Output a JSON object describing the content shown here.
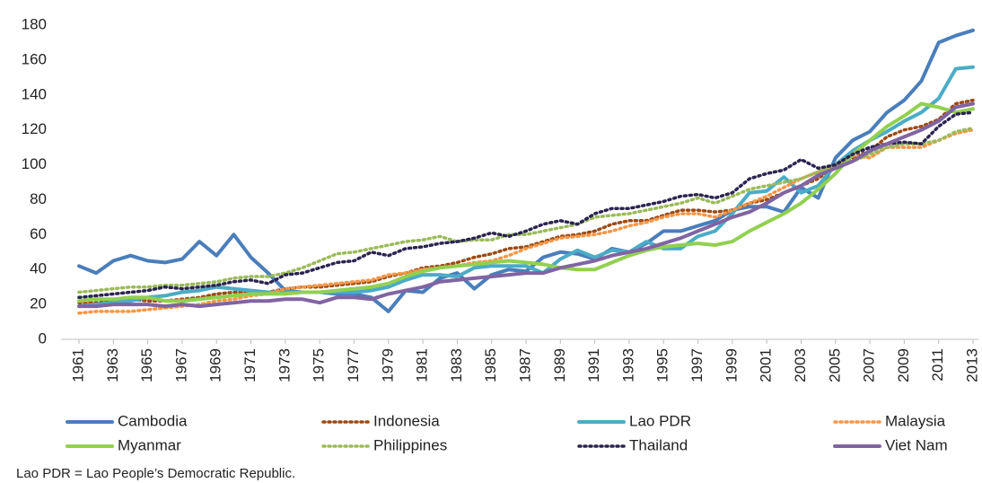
{
  "chart_data": {
    "type": "line",
    "x": [
      1961,
      1962,
      1963,
      1964,
      1965,
      1966,
      1967,
      1968,
      1969,
      1970,
      1971,
      1972,
      1973,
      1974,
      1975,
      1976,
      1977,
      1978,
      1979,
      1980,
      1981,
      1982,
      1983,
      1984,
      1985,
      1986,
      1987,
      1988,
      1989,
      1990,
      1991,
      1992,
      1993,
      1994,
      1995,
      1996,
      1997,
      1998,
      1999,
      2000,
      2001,
      2002,
      2003,
      2004,
      2005,
      2006,
      2007,
      2008,
      2009,
      2010,
      2011,
      2012,
      2013
    ],
    "xlim": [
      1961,
      2013
    ],
    "xticks": [
      1961,
      1963,
      1965,
      1967,
      1969,
      1971,
      1973,
      1975,
      1977,
      1979,
      1981,
      1983,
      1985,
      1987,
      1989,
      1991,
      1993,
      1995,
      1997,
      1999,
      2001,
      2003,
      2005,
      2007,
      2009,
      2011,
      2013
    ],
    "ylim": [
      0,
      180
    ],
    "yticks": [
      0,
      20,
      40,
      60,
      80,
      100,
      120,
      140,
      160,
      180
    ],
    "grid": false,
    "legend": "bottom",
    "series": [
      {
        "name": "Cambodia",
        "color": "#4a7ebb",
        "style": "solid",
        "values": [
          42,
          38,
          45,
          48,
          45,
          44,
          46,
          56,
          48,
          60,
          47,
          38,
          28,
          27,
          27,
          26,
          26,
          24,
          16,
          28,
          27,
          35,
          38,
          29,
          37,
          40,
          39,
          47,
          50,
          49,
          46,
          52,
          50,
          55,
          62,
          62,
          65,
          68,
          74,
          76,
          76,
          73,
          87,
          81,
          104,
          114,
          119,
          130,
          137,
          148,
          170,
          174,
          177
        ]
      },
      {
        "name": "Indonesia",
        "color": "#9c4a14",
        "style": "dotted",
        "values": [
          21,
          21,
          22,
          23,
          22,
          22,
          23,
          24,
          26,
          27,
          27,
          27,
          29,
          30,
          30,
          31,
          32,
          33,
          36,
          38,
          41,
          42,
          44,
          47,
          49,
          52,
          53,
          56,
          59,
          60,
          62,
          66,
          68,
          68,
          71,
          74,
          74,
          73,
          74,
          78,
          80,
          84,
          88,
          92,
          100,
          104,
          108,
          116,
          120,
          122,
          126,
          135,
          137
        ]
      },
      {
        "name": "Lao PDR",
        "color": "#4bacc6",
        "style": "solid",
        "values": [
          19,
          20,
          21,
          22,
          24,
          25,
          27,
          28,
          30,
          29,
          28,
          27,
          27,
          27,
          27,
          27,
          27,
          28,
          30,
          34,
          37,
          37,
          36,
          41,
          42,
          42,
          42,
          38,
          46,
          51,
          47,
          51,
          50,
          56,
          52,
          52,
          59,
          62,
          72,
          84,
          85,
          93,
          84,
          88,
          100,
          108,
          114,
          119,
          125,
          130,
          138,
          155,
          156
        ]
      },
      {
        "name": "Malaysia",
        "color": "#f79646",
        "style": "dotted",
        "values": [
          15,
          16,
          16,
          16,
          17,
          18,
          19,
          20,
          22,
          23,
          25,
          26,
          29,
          30,
          31,
          32,
          33,
          34,
          37,
          38,
          40,
          41,
          42,
          44,
          45,
          48,
          52,
          55,
          58,
          59,
          60,
          62,
          65,
          67,
          70,
          72,
          72,
          70,
          74,
          78,
          82,
          87,
          92,
          96,
          100,
          105,
          104,
          110,
          110,
          110,
          114,
          118,
          120
        ]
      },
      {
        "name": "Myanmar",
        "color": "#92d050",
        "style": "solid",
        "values": [
          22,
          23,
          23,
          24,
          24,
          22,
          22,
          23,
          24,
          25,
          26,
          26,
          26,
          27,
          27,
          28,
          29,
          30,
          32,
          36,
          39,
          41,
          42,
          43,
          44,
          45,
          44,
          43,
          41,
          40,
          40,
          44,
          48,
          51,
          53,
          54,
          55,
          54,
          56,
          62,
          67,
          72,
          78,
          86,
          95,
          106,
          114,
          122,
          128,
          135,
          133,
          130,
          132
        ]
      },
      {
        "name": "Philippines",
        "color": "#9bbb59",
        "style": "dotted",
        "values": [
          27,
          28,
          29,
          30,
          30,
          31,
          31,
          32,
          33,
          35,
          36,
          36,
          38,
          41,
          45,
          49,
          50,
          52,
          54,
          56,
          57,
          59,
          56,
          57,
          57,
          60,
          60,
          62,
          64,
          66,
          70,
          71,
          72,
          74,
          76,
          78,
          81,
          78,
          82,
          86,
          88,
          90,
          92,
          96,
          100,
          102,
          106,
          110,
          112,
          112,
          114,
          119,
          121
        ]
      },
      {
        "name": "Thailand",
        "color": "#2a2450",
        "style": "dotted",
        "values": [
          24,
          25,
          26,
          27,
          28,
          30,
          29,
          30,
          31,
          33,
          34,
          32,
          37,
          38,
          41,
          44,
          45,
          50,
          48,
          52,
          53,
          55,
          56,
          58,
          61,
          59,
          62,
          66,
          68,
          66,
          72,
          75,
          75,
          77,
          79,
          82,
          83,
          81,
          84,
          92,
          95,
          97,
          103,
          98,
          100,
          106,
          110,
          112,
          113,
          112,
          122,
          129,
          130
        ]
      },
      {
        "name": "Viet Nam",
        "color": "#8064a2",
        "style": "solid",
        "values": [
          19,
          19,
          20,
          20,
          20,
          19,
          20,
          19,
          20,
          21,
          22,
          22,
          23,
          23,
          21,
          24,
          24,
          23,
          26,
          28,
          30,
          33,
          34,
          35,
          36,
          37,
          38,
          38,
          41,
          43,
          45,
          48,
          50,
          52,
          55,
          58,
          62,
          66,
          70,
          73,
          78,
          84,
          88,
          94,
          98,
          102,
          108,
          112,
          116,
          120,
          125,
          133,
          135
        ]
      }
    ]
  },
  "note": "Lao PDR = Lao People’s Democratic Republic."
}
